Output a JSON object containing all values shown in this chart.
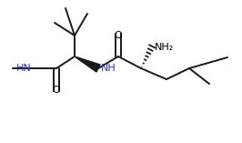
{
  "bg_color": "#ffffff",
  "line_color": "#1a1a1a",
  "text_color": "#000000",
  "nh_color": "#3333aa",
  "figsize": [
    2.66,
    1.57
  ],
  "dpi": 100,
  "xlim": [
    0,
    266
  ],
  "ylim": [
    0,
    157
  ]
}
